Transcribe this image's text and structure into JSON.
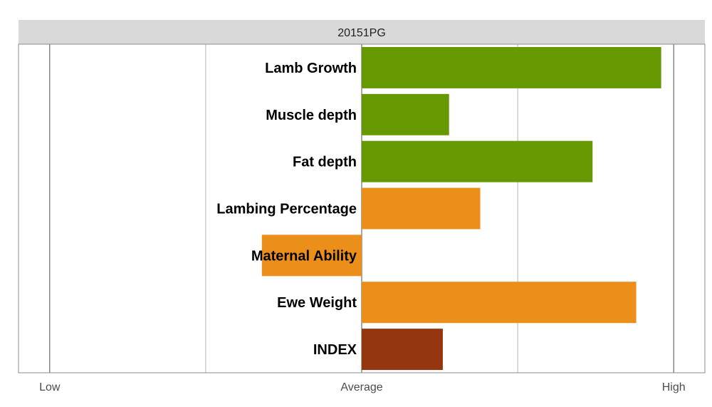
{
  "chart_data": {
    "type": "bar",
    "orientation": "horizontal",
    "title": "20151PG",
    "categories": [
      "Lamb Growth",
      "Muscle depth",
      "Fat depth",
      "Lambing Percentage",
      "Maternal Ability",
      "Ewe Weight",
      "INDEX"
    ],
    "values": [
      0.96,
      0.28,
      0.74,
      0.38,
      -0.32,
      0.88,
      0.26
    ],
    "bar_colors": [
      "#669900",
      "#669900",
      "#669900",
      "#ec8f1a",
      "#ec8f1a",
      "#ec8f1a",
      "#943711"
    ],
    "xlim": [
      -1.1,
      1.1
    ],
    "x_ticks": [
      {
        "value": -1,
        "label": "Low"
      },
      {
        "value": 0,
        "label": "Average"
      },
      {
        "value": 1,
        "label": "High"
      }
    ],
    "minor_gridlines": [
      -0.5,
      0.5
    ],
    "grid": true,
    "legend": "none"
  },
  "colors": {
    "strip_fill": "#d9d9d9",
    "panel_border": "#8c8c8c",
    "grid_major": "#4d4d4d",
    "grid_minor": "#b3b3b3"
  }
}
